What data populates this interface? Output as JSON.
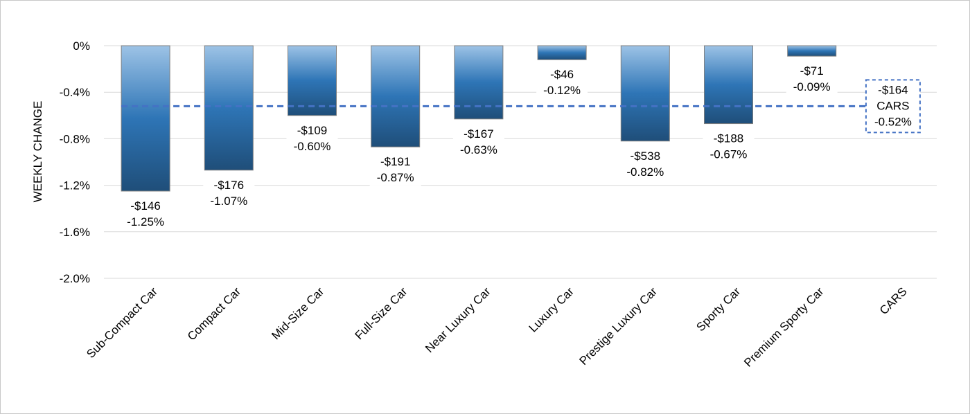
{
  "chart_data": {
    "type": "bar",
    "ylabel": "WEEKLY CHANGE",
    "xlabel": "",
    "ylim": [
      -2.0,
      0
    ],
    "yticks": [
      0,
      -0.4,
      -0.8,
      -1.2,
      -1.6,
      -2.0
    ],
    "ytick_labels": [
      "0%",
      "-0.4%",
      "-0.8%",
      "-1.2%",
      "-1.6%",
      "-2.0%"
    ],
    "categories": [
      "Sub-Compact Car",
      "Compact Car",
      "Mid-Size Car",
      "Full-Size Car",
      "Near Luxury Car",
      "Luxury Car",
      "Prestige Luxury Car",
      "Sporty Car",
      "Premium Sporty Car",
      "CARS"
    ],
    "values": [
      -1.25,
      -1.07,
      -0.6,
      -0.87,
      -0.63,
      -0.12,
      -0.82,
      -0.67,
      -0.09,
      null
    ],
    "dollar_labels": [
      "-$146",
      "-$176",
      "-$109",
      "-$191",
      "-$167",
      "-$46",
      "-$538",
      "-$188",
      "-$71"
    ],
    "pct_labels": [
      "-1.25%",
      "-1.07%",
      "-0.60%",
      "-0.87%",
      "-0.63%",
      "-0.12%",
      "-0.82%",
      "-0.67%",
      "-0.09%"
    ],
    "reference_line": {
      "value": -0.52,
      "label_lines": [
        "-$164",
        "CARS",
        "-0.52%"
      ],
      "style": "dashed"
    },
    "grid": true,
    "legend": "none",
    "colors": {
      "bar_top": "#9dc3e6",
      "bar_mid": "#2e75b6",
      "bar_bottom": "#1f4e79",
      "bar_border": "#7f7f7f",
      "grid": "#d9d9d9",
      "reference": "#4472c4"
    }
  }
}
